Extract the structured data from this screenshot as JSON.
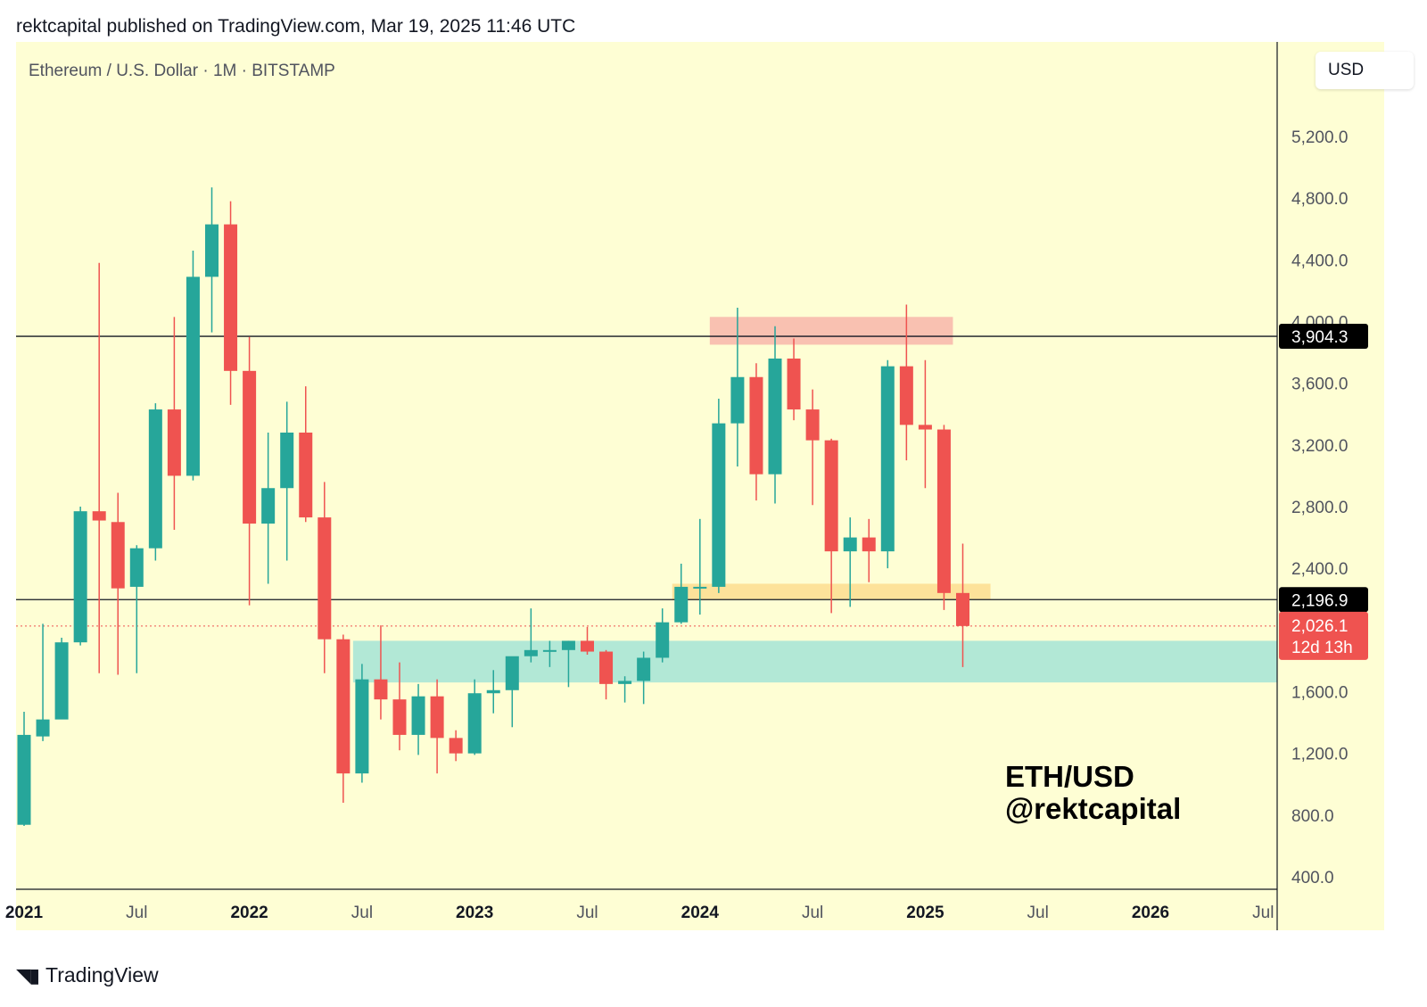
{
  "header": "rektcapital published on TradingView.com, Mar 19, 2025 11:46 UTC",
  "symbol_line": "Ethereum / U.S. Dollar · 1M · BITSTAMP",
  "currency": "USD",
  "watermark_line1": "ETH/USD",
  "watermark_line2": "@rektcapital",
  "brand": "TradingView",
  "colors": {
    "background": "#fefed4",
    "up": "#26a69a",
    "down": "#ef5350",
    "resistance_zone": "#f9c1b1",
    "support_zone_orange": "#fde29a",
    "demand_zone": "#b2e8d6"
  },
  "price_labels": {
    "level_high": "3,904.3",
    "level_low": "2,196.9",
    "last_price": "2,026.1",
    "countdown": "12d 13h"
  },
  "chart_data": {
    "type": "candlestick",
    "title": "Ethereum / U.S. Dollar · 1M · BITSTAMP",
    "ylim": [
      400,
      5200
    ],
    "y_ticks": [
      "5,200.0",
      "4,800.0",
      "4,400.0",
      "4,000.0",
      "3,600.0",
      "3,200.0",
      "2,800.0",
      "2,400.0",
      "1,600.0",
      "1,200.0",
      "800.0",
      "400.0"
    ],
    "x_ticks": [
      "2021",
      "Jul",
      "2022",
      "Jul",
      "2023",
      "Jul",
      "2024",
      "Jul",
      "2025",
      "Jul",
      "2026",
      "Jul"
    ],
    "horizontal_lines": [
      3904.3,
      2196.9
    ],
    "last_price_line": 2026.1,
    "zones": [
      {
        "name": "resistance",
        "from": "2024-02",
        "to": "2025-02",
        "low": 3850,
        "high": 4030
      },
      {
        "name": "support",
        "from": "2023-12",
        "to": "2025-04",
        "low": 2200,
        "high": 2300
      },
      {
        "name": "demand",
        "from": "2022-07",
        "to": "2026-08",
        "low": 1660,
        "high": 1930
      }
    ],
    "candles": [
      {
        "t": "2021-01",
        "o": 737,
        "h": 1470,
        "l": 730,
        "c": 1320
      },
      {
        "t": "2021-02",
        "o": 1310,
        "h": 2040,
        "l": 1280,
        "c": 1420
      },
      {
        "t": "2021-03",
        "o": 1420,
        "h": 1950,
        "l": 1430,
        "c": 1920
      },
      {
        "t": "2021-04",
        "o": 1920,
        "h": 2800,
        "l": 1900,
        "c": 2770
      },
      {
        "t": "2021-05",
        "o": 2770,
        "h": 4380,
        "l": 1720,
        "c": 2710
      },
      {
        "t": "2021-06",
        "o": 2700,
        "h": 2890,
        "l": 1710,
        "c": 2270
      },
      {
        "t": "2021-07",
        "o": 2280,
        "h": 2550,
        "l": 1720,
        "c": 2530
      },
      {
        "t": "2021-08",
        "o": 2530,
        "h": 3470,
        "l": 2450,
        "c": 3430
      },
      {
        "t": "2021-09",
        "o": 3430,
        "h": 4030,
        "l": 2650,
        "c": 3000
      },
      {
        "t": "2021-10",
        "o": 3000,
        "h": 4460,
        "l": 2970,
        "c": 4290
      },
      {
        "t": "2021-11",
        "o": 4290,
        "h": 4870,
        "l": 3930,
        "c": 4630
      },
      {
        "t": "2021-12",
        "o": 4630,
        "h": 4780,
        "l": 3460,
        "c": 3680
      },
      {
        "t": "2022-01",
        "o": 3680,
        "h": 3900,
        "l": 2160,
        "c": 2690
      },
      {
        "t": "2022-02",
        "o": 2690,
        "h": 3280,
        "l": 2300,
        "c": 2920
      },
      {
        "t": "2022-03",
        "o": 2920,
        "h": 3480,
        "l": 2450,
        "c": 3280
      },
      {
        "t": "2022-04",
        "o": 3280,
        "h": 3580,
        "l": 2700,
        "c": 2730
      },
      {
        "t": "2022-05",
        "o": 2730,
        "h": 2960,
        "l": 1720,
        "c": 1940
      },
      {
        "t": "2022-06",
        "o": 1940,
        "h": 1970,
        "l": 880,
        "c": 1070
      },
      {
        "t": "2022-07",
        "o": 1070,
        "h": 1780,
        "l": 1010,
        "c": 1680
      },
      {
        "t": "2022-08",
        "o": 1680,
        "h": 2030,
        "l": 1420,
        "c": 1550
      },
      {
        "t": "2022-09",
        "o": 1550,
        "h": 1790,
        "l": 1220,
        "c": 1320
      },
      {
        "t": "2022-10",
        "o": 1320,
        "h": 1650,
        "l": 1190,
        "c": 1570
      },
      {
        "t": "2022-11",
        "o": 1570,
        "h": 1680,
        "l": 1070,
        "c": 1300
      },
      {
        "t": "2022-12",
        "o": 1300,
        "h": 1350,
        "l": 1150,
        "c": 1200
      },
      {
        "t": "2023-01",
        "o": 1200,
        "h": 1680,
        "l": 1190,
        "c": 1590
      },
      {
        "t": "2023-02",
        "o": 1590,
        "h": 1740,
        "l": 1460,
        "c": 1610
      },
      {
        "t": "2023-03",
        "o": 1610,
        "h": 1820,
        "l": 1370,
        "c": 1830
      },
      {
        "t": "2023-04",
        "o": 1830,
        "h": 2140,
        "l": 1790,
        "c": 1870
      },
      {
        "t": "2023-05",
        "o": 1870,
        "h": 1930,
        "l": 1760,
        "c": 1870
      },
      {
        "t": "2023-06",
        "o": 1870,
        "h": 1930,
        "l": 1630,
        "c": 1930
      },
      {
        "t": "2023-07",
        "o": 1930,
        "h": 2020,
        "l": 1840,
        "c": 1860
      },
      {
        "t": "2023-08",
        "o": 1860,
        "h": 1870,
        "l": 1550,
        "c": 1650
      },
      {
        "t": "2023-09",
        "o": 1650,
        "h": 1700,
        "l": 1530,
        "c": 1670
      },
      {
        "t": "2023-10",
        "o": 1670,
        "h": 1860,
        "l": 1520,
        "c": 1820
      },
      {
        "t": "2023-11",
        "o": 1820,
        "h": 2140,
        "l": 1790,
        "c": 2050
      },
      {
        "t": "2023-12",
        "o": 2050,
        "h": 2430,
        "l": 2040,
        "c": 2280
      },
      {
        "t": "2024-01",
        "o": 2280,
        "h": 2720,
        "l": 2100,
        "c": 2280
      },
      {
        "t": "2024-02",
        "o": 2280,
        "h": 3500,
        "l": 2240,
        "c": 3340
      },
      {
        "t": "2024-03",
        "o": 3340,
        "h": 4090,
        "l": 3060,
        "c": 3640
      },
      {
        "t": "2024-04",
        "o": 3640,
        "h": 3730,
        "l": 2840,
        "c": 3010
      },
      {
        "t": "2024-05",
        "o": 3010,
        "h": 3970,
        "l": 2820,
        "c": 3760
      },
      {
        "t": "2024-06",
        "o": 3760,
        "h": 3890,
        "l": 3360,
        "c": 3430
      },
      {
        "t": "2024-07",
        "o": 3430,
        "h": 3560,
        "l": 2810,
        "c": 3230
      },
      {
        "t": "2024-08",
        "o": 3230,
        "h": 3240,
        "l": 2110,
        "c": 2510
      },
      {
        "t": "2024-09",
        "o": 2510,
        "h": 2730,
        "l": 2150,
        "c": 2600
      },
      {
        "t": "2024-10",
        "o": 2600,
        "h": 2720,
        "l": 2310,
        "c": 2510
      },
      {
        "t": "2024-11",
        "o": 2510,
        "h": 3750,
        "l": 2400,
        "c": 3710
      },
      {
        "t": "2024-12",
        "o": 3710,
        "h": 4110,
        "l": 3100,
        "c": 3330
      },
      {
        "t": "2025-01",
        "o": 3330,
        "h": 3750,
        "l": 2920,
        "c": 3300
      },
      {
        "t": "2025-02",
        "o": 3300,
        "h": 3330,
        "l": 2130,
        "c": 2240
      },
      {
        "t": "2025-03",
        "o": 2240,
        "h": 2560,
        "l": 1760,
        "c": 2026
      }
    ]
  }
}
